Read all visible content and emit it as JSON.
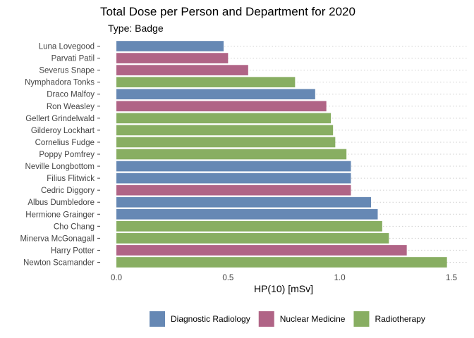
{
  "chart_data": {
    "type": "bar",
    "orientation": "horizontal",
    "title": "Total Dose per Person and Department for 2020",
    "subtitle": "Type: Badge",
    "xlabel": "HP(10) [mSv]",
    "ylabel": "",
    "xlim": [
      0,
      1.5
    ],
    "xticks": [
      0.0,
      0.5,
      1.0,
      1.5
    ],
    "xtick_labels": [
      "0.0",
      "0.5",
      "1.0",
      "1.5"
    ],
    "grid": "dotted horizontal",
    "legend_position": "bottom",
    "legend": [
      {
        "name": "Diagnostic Radiology",
        "color": "#6688b4"
      },
      {
        "name": "Nuclear Medicine",
        "color": "#b06486"
      },
      {
        "name": "Radiotherapy",
        "color": "#88ae62"
      }
    ],
    "bars": [
      {
        "name": "Luna Lovegood",
        "value": 0.48,
        "department": "Diagnostic Radiology"
      },
      {
        "name": "Parvati Patil",
        "value": 0.5,
        "department": "Nuclear Medicine"
      },
      {
        "name": "Severus Snape",
        "value": 0.59,
        "department": "Nuclear Medicine"
      },
      {
        "name": "Nymphadora Tonks",
        "value": 0.8,
        "department": "Radiotherapy"
      },
      {
        "name": "Draco Malfoy",
        "value": 0.89,
        "department": "Diagnostic Radiology"
      },
      {
        "name": "Ron Weasley",
        "value": 0.94,
        "department": "Nuclear Medicine"
      },
      {
        "name": "Gellert Grindelwald",
        "value": 0.96,
        "department": "Radiotherapy"
      },
      {
        "name": "Gilderoy Lockhart",
        "value": 0.97,
        "department": "Radiotherapy"
      },
      {
        "name": "Cornelius Fudge",
        "value": 0.98,
        "department": "Radiotherapy"
      },
      {
        "name": "Poppy Pomfrey",
        "value": 1.03,
        "department": "Radiotherapy"
      },
      {
        "name": "Neville Longbottom",
        "value": 1.05,
        "department": "Diagnostic Radiology"
      },
      {
        "name": "Filius Flitwick",
        "value": 1.05,
        "department": "Diagnostic Radiology"
      },
      {
        "name": "Cedric Diggory",
        "value": 1.05,
        "department": "Nuclear Medicine"
      },
      {
        "name": "Albus Dumbledore",
        "value": 1.14,
        "department": "Diagnostic Radiology"
      },
      {
        "name": "Hermione Grainger",
        "value": 1.17,
        "department": "Diagnostic Radiology"
      },
      {
        "name": "Cho Chang",
        "value": 1.19,
        "department": "Radiotherapy"
      },
      {
        "name": "Minerva McGonagall",
        "value": 1.22,
        "department": "Radiotherapy"
      },
      {
        "name": "Harry Potter",
        "value": 1.3,
        "department": "Nuclear Medicine"
      },
      {
        "name": "Newton Scamander",
        "value": 1.48,
        "department": "Radiotherapy"
      }
    ]
  }
}
